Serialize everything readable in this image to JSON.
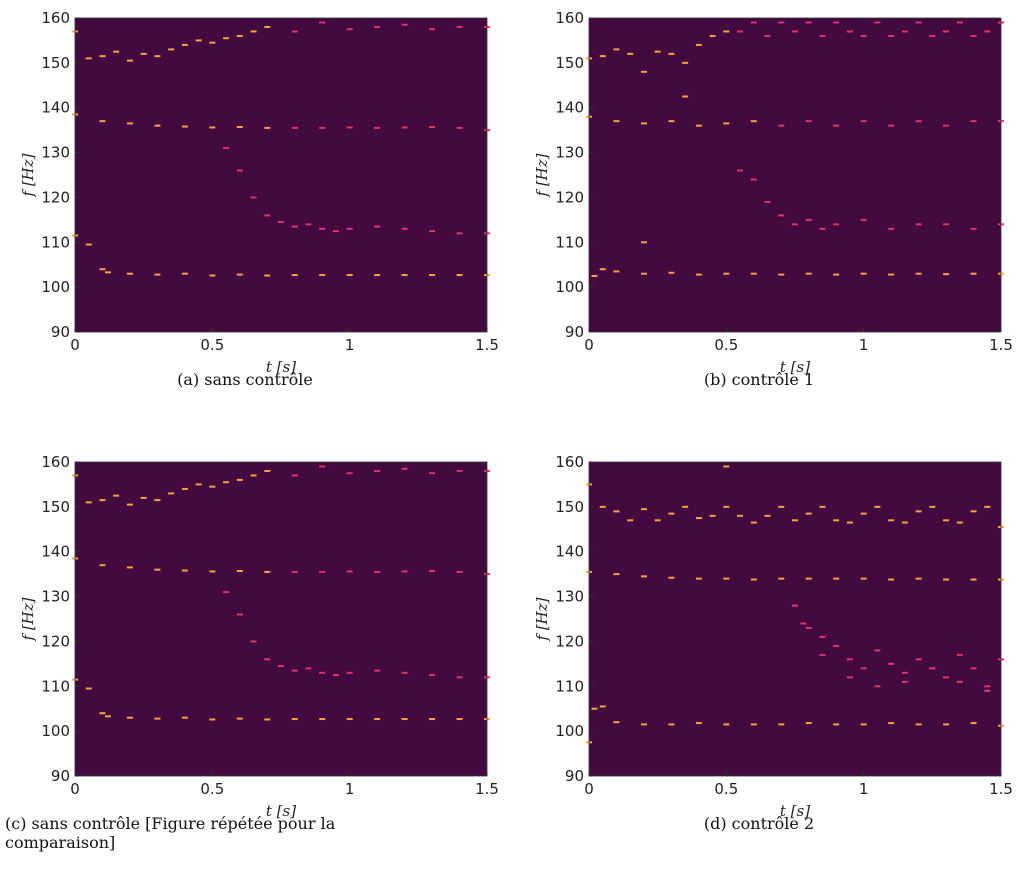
{
  "chart_data": [
    {
      "type": "scatter",
      "caption": "(a) sans contrôle",
      "xlabel": "t [s]",
      "ylabel": "f [Hz]",
      "xlim": [
        0,
        1.5
      ],
      "ylim": [
        90,
        160
      ],
      "xticks": [
        0,
        0.5,
        1,
        1.5
      ],
      "yticks": [
        90,
        100,
        110,
        120,
        130,
        140,
        150,
        160
      ],
      "background": "#420a3e",
      "series": [
        {
          "color": "#f4a63c",
          "x": [
            0,
            0.05,
            0.1,
            0.12,
            0.2,
            0.3,
            0.4,
            0.5,
            0.6,
            0.7,
            0.8,
            0.9,
            1,
            1.1,
            1.2,
            1.3,
            1.4,
            1.5,
            0,
            0.1,
            0.2,
            0.3,
            0.4,
            0.5,
            0.6,
            0.7,
            0,
            0.05,
            0.1,
            0.15,
            0.2,
            0.25,
            0.3,
            0.35,
            0.4,
            0.45,
            0.5,
            0.55,
            0.6,
            0.65,
            0.7
          ],
          "values": [
            111.5,
            109.5,
            104,
            103.3,
            103,
            102.8,
            103,
            102.6,
            102.8,
            102.6,
            102.7,
            102.7,
            102.7,
            102.7,
            102.7,
            102.7,
            102.7,
            102.7,
            138.5,
            137,
            136.5,
            136,
            135.8,
            135.6,
            135.7,
            135.5,
            157,
            151,
            151.5,
            152.5,
            150.5,
            152,
            151.5,
            153,
            154,
            155,
            154.5,
            155.5,
            156,
            157,
            158
          ]
        },
        {
          "color": "#e0307c",
          "x": [
            0.8,
            0.9,
            1,
            1.1,
            1.2,
            1.3,
            1.4,
            1.5,
            0.55,
            0.6,
            0.65,
            0.7,
            0.75,
            0.8,
            0.85,
            0.9,
            0.95,
            1,
            1.1,
            1.2,
            1.3,
            1.4,
            1.5,
            0.8,
            0.9,
            1,
            1.1,
            1.2,
            1.3,
            1.4,
            1.5
          ],
          "values": [
            135.5,
            135.5,
            135.6,
            135.5,
            135.6,
            135.7,
            135.5,
            135,
            131,
            126,
            120,
            116,
            114.5,
            113.5,
            114,
            113,
            112.5,
            113,
            113.5,
            113,
            112.5,
            112,
            112,
            157,
            159,
            157.5,
            158,
            158.5,
            157.5,
            158,
            158
          ]
        }
      ]
    },
    {
      "type": "scatter",
      "caption": "(b) contrôle 1",
      "xlabel": "t [s]",
      "ylabel": "f [Hz]",
      "xlim": [
        0,
        1.5
      ],
      "ylim": [
        90,
        160
      ],
      "xticks": [
        0,
        0.5,
        1,
        1.5
      ],
      "yticks": [
        90,
        100,
        110,
        120,
        130,
        140,
        150,
        160
      ],
      "background": "#420a3e",
      "series": [
        {
          "color": "#f4a63c",
          "x": [
            0.02,
            0.05,
            0.1,
            0.2,
            0.3,
            0.4,
            0.5,
            0.6,
            0.7,
            0.8,
            0.9,
            1,
            1.1,
            1.2,
            1.3,
            1.4,
            1.5,
            0,
            0.1,
            0.2,
            0.3,
            0.4,
            0.5,
            0.6,
            0,
            0.05,
            0.1,
            0.15,
            0.2,
            0.25,
            0.3,
            0.35,
            0.4,
            0.45,
            0.5,
            0.2,
            0.35
          ],
          "values": [
            102.5,
            104,
            103.5,
            103,
            103.2,
            102.8,
            103,
            103,
            102.8,
            103,
            102.8,
            103,
            102.8,
            103,
            102.9,
            103,
            103,
            138,
            137,
            136.5,
            137,
            136,
            136.5,
            137,
            151,
            151.5,
            153,
            152,
            148,
            152.5,
            152,
            150,
            154,
            156,
            157,
            110,
            142.5
          ]
        },
        {
          "color": "#e0307c",
          "x": [
            0.7,
            0.8,
            0.9,
            1,
            1.1,
            1.2,
            1.3,
            1.4,
            1.5,
            0.55,
            0.6,
            0.65,
            0.7,
            0.75,
            0.8,
            0.85,
            0.9,
            1,
            1.1,
            1.2,
            1.3,
            1.4,
            1.5,
            0.55,
            0.6,
            0.65,
            0.7,
            0.75,
            0.8,
            0.85,
            0.9,
            0.95,
            1,
            1.05,
            1.1,
            1.15,
            1.2,
            1.25,
            1.3,
            1.35,
            1.4,
            1.45,
            1.5
          ],
          "values": [
            136,
            137,
            136,
            137,
            136,
            137,
            136,
            137,
            137,
            126,
            124,
            119,
            116,
            114,
            115,
            113,
            114,
            115,
            113,
            114,
            114,
            113,
            114,
            157,
            159,
            156,
            159,
            157,
            159,
            156,
            159,
            157,
            156,
            159,
            156,
            157,
            159,
            156,
            157,
            159,
            156,
            157,
            159
          ]
        }
      ]
    },
    {
      "type": "scatter",
      "caption": "(c) sans contrôle [Figure répétée pour la comparaison]",
      "xlabel": "t [s]",
      "ylabel": "f [Hz]",
      "xlim": [
        0,
        1.5
      ],
      "ylim": [
        90,
        160
      ],
      "xticks": [
        0,
        0.5,
        1,
        1.5
      ],
      "yticks": [
        90,
        100,
        110,
        120,
        130,
        140,
        150,
        160
      ],
      "background": "#420a3e",
      "series": [
        {
          "color": "#f4a63c",
          "x": [
            0,
            0.05,
            0.1,
            0.12,
            0.2,
            0.3,
            0.4,
            0.5,
            0.6,
            0.7,
            0.8,
            0.9,
            1,
            1.1,
            1.2,
            1.3,
            1.4,
            1.5,
            0,
            0.1,
            0.2,
            0.3,
            0.4,
            0.5,
            0.6,
            0.7,
            0,
            0.05,
            0.1,
            0.15,
            0.2,
            0.25,
            0.3,
            0.35,
            0.4,
            0.45,
            0.5,
            0.55,
            0.6,
            0.65,
            0.7
          ],
          "values": [
            111.5,
            109.5,
            104,
            103.3,
            103,
            102.8,
            103,
            102.6,
            102.8,
            102.6,
            102.7,
            102.7,
            102.7,
            102.7,
            102.7,
            102.7,
            102.7,
            102.7,
            138.5,
            137,
            136.5,
            136,
            135.8,
            135.6,
            135.7,
            135.5,
            157,
            151,
            151.5,
            152.5,
            150.5,
            152,
            151.5,
            153,
            154,
            155,
            154.5,
            155.5,
            156,
            157,
            158
          ]
        },
        {
          "color": "#e0307c",
          "x": [
            0.8,
            0.9,
            1,
            1.1,
            1.2,
            1.3,
            1.4,
            1.5,
            0.55,
            0.6,
            0.65,
            0.7,
            0.75,
            0.8,
            0.85,
            0.9,
            0.95,
            1,
            1.1,
            1.2,
            1.3,
            1.4,
            1.5,
            0.8,
            0.9,
            1,
            1.1,
            1.2,
            1.3,
            1.4,
            1.5
          ],
          "values": [
            135.5,
            135.5,
            135.6,
            135.5,
            135.6,
            135.7,
            135.5,
            135,
            131,
            126,
            120,
            116,
            114.5,
            113.5,
            114,
            113,
            112.5,
            113,
            113.5,
            113,
            112.5,
            112,
            112,
            157,
            159,
            157.5,
            158,
            158.5,
            157.5,
            158,
            158
          ]
        }
      ]
    },
    {
      "type": "scatter",
      "caption": "(d) contrôle 2",
      "xlabel": "t [s]",
      "ylabel": "f [Hz]",
      "xlim": [
        0,
        1.5
      ],
      "ylim": [
        90,
        160
      ],
      "xticks": [
        0,
        0.5,
        1,
        1.5
      ],
      "yticks": [
        90,
        100,
        110,
        120,
        130,
        140,
        150,
        160
      ],
      "background": "#420a3e",
      "series": [
        {
          "color": "#f4a63c",
          "x": [
            0,
            0.02,
            0.05,
            0.1,
            0.2,
            0.3,
            0.4,
            0.5,
            0.6,
            0.7,
            0.8,
            0.9,
            1,
            1.1,
            1.2,
            1.3,
            1.4,
            1.5,
            0,
            0.1,
            0.2,
            0.3,
            0.4,
            0.5,
            0.6,
            0.7,
            0.8,
            0.9,
            1,
            1.1,
            1.2,
            1.3,
            1.4,
            1.5,
            0,
            0.05,
            0.1,
            0.15,
            0.2,
            0.25,
            0.3,
            0.35,
            0.4,
            0.45,
            0.5,
            0.55,
            0.6,
            0.65,
            0.7,
            0.75,
            0.8,
            0.85,
            0.9,
            0.95,
            1,
            1.05,
            1.1,
            1.15,
            1.2,
            1.25,
            1.3,
            1.35,
            1.4,
            1.45,
            1.5,
            0.5
          ],
          "values": [
            97.5,
            105,
            105.5,
            102,
            101.5,
            101.5,
            101.8,
            101.5,
            101.5,
            101.5,
            101.8,
            101.5,
            101.5,
            101.8,
            101.5,
            101.5,
            101.8,
            101.2,
            135.5,
            135,
            134.5,
            134.2,
            134,
            134,
            133.8,
            134,
            134,
            134,
            134,
            133.8,
            134,
            133.8,
            133.8,
            133.8,
            155,
            150,
            149,
            147,
            149.5,
            147,
            148.5,
            150,
            147.5,
            148,
            150,
            148,
            146.5,
            148,
            150,
            147,
            148.5,
            150,
            147,
            146.5,
            148.5,
            150,
            147,
            146.5,
            149,
            150,
            147,
            146.5,
            149,
            150,
            145.5,
            159
          ]
        },
        {
          "color": "#e0307c",
          "x": [
            0.75,
            0.8,
            0.85,
            0.9,
            0.95,
            1,
            1.05,
            1.1,
            1.15,
            1.2,
            1.25,
            1.3,
            1.35,
            1.4,
            1.45,
            1.5,
            0.78,
            0.85,
            0.95,
            1.05,
            1.15,
            1.25,
            1.35,
            1.45
          ],
          "values": [
            128,
            123,
            121,
            119,
            116,
            114,
            118,
            115,
            113,
            116,
            114,
            112,
            117,
            114,
            110,
            116,
            124,
            117,
            112,
            110,
            111,
            114,
            111,
            109
          ]
        }
      ]
    }
  ]
}
